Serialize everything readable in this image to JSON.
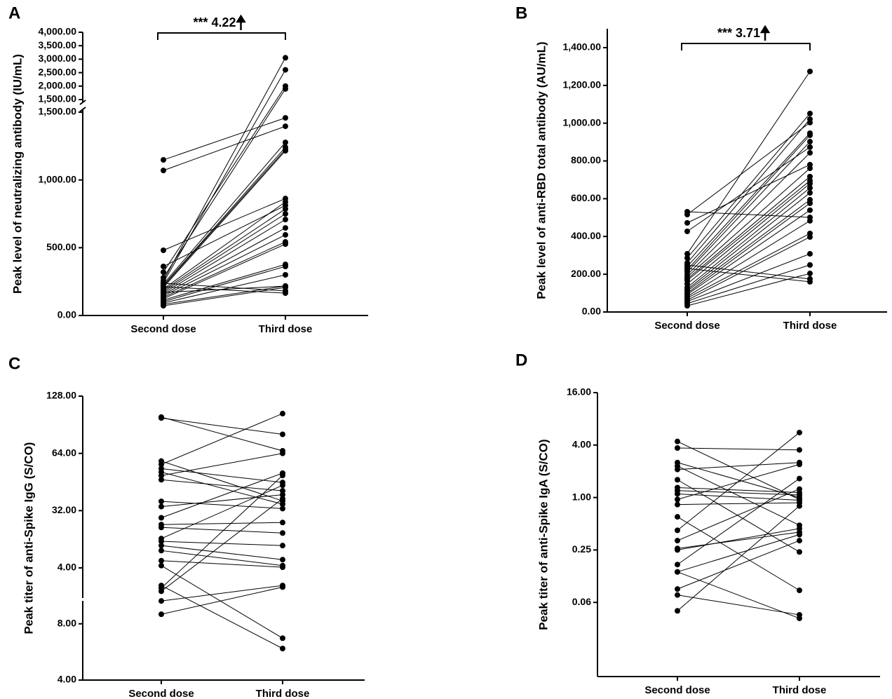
{
  "chart_data": [
    {
      "type": "paired",
      "panel": "A",
      "ylabel": "Peak level of neutralizing antibody (IU/mL)",
      "annotation": "*** 4.22",
      "categories": [
        "Second dose",
        "Third dose"
      ],
      "color": "#000000",
      "axis_break": true,
      "ylim": [
        0,
        1500
      ],
      "yticks": [
        {
          "value": 0,
          "label": "0.00"
        },
        {
          "value": 500,
          "label": "500.00"
        },
        {
          "value": 1000,
          "label": "1,000.00"
        },
        {
          "value": 1500,
          "label": "1,500.00"
        }
      ],
      "ylim_upper": [
        1500,
        4000
      ],
      "yticks_upper": [
        {
          "value": 1500,
          "label": "1,500.00"
        },
        {
          "value": 2000,
          "label": "2,000.00"
        },
        {
          "value": 2500,
          "label": "2,500.00"
        },
        {
          "value": 3000,
          "label": "3,000.00"
        },
        {
          "value": 3500,
          "label": "3,500.00"
        },
        {
          "value": 4000,
          "label": "4,000.00"
        }
      ],
      "series": [
        {
          "values": [
            1148,
            1458
          ]
        },
        {
          "values": [
            1070,
            1396
          ]
        },
        {
          "values": [
            481,
            863
          ]
        },
        {
          "values": [
            362,
            812
          ]
        },
        {
          "values": [
            320,
            2000
          ]
        },
        {
          "values": [
            279,
            1895
          ]
        },
        {
          "values": [
            258,
            3052
          ]
        },
        {
          "values": [
            243,
            2605
          ]
        },
        {
          "values": [
            233,
            1277
          ]
        },
        {
          "values": [
            222,
            1241
          ]
        },
        {
          "values": [
            217,
            1225
          ]
        },
        {
          "values": [
            207,
            1215
          ]
        },
        {
          "values": [
            196,
            838
          ]
        },
        {
          "values": [
            186,
            786
          ]
        },
        {
          "values": [
            176,
            750
          ]
        },
        {
          "values": [
            165,
            708
          ]
        },
        {
          "values": [
            155,
            646
          ]
        },
        {
          "values": [
            145,
            595
          ]
        },
        {
          "values": [
            134,
            543
          ]
        },
        {
          "values": [
            124,
            527
          ]
        },
        {
          "values": [
            114,
            377
          ]
        },
        {
          "values": [
            103,
            362
          ]
        },
        {
          "values": [
            93,
            300
          ]
        },
        {
          "values": [
            83,
            217
          ]
        },
        {
          "values": [
            72,
            207
          ]
        },
        {
          "values": [
            238,
            181
          ]
        },
        {
          "values": [
            212,
            165
          ]
        },
        {
          "values": [
            170,
            217
          ]
        }
      ]
    },
    {
      "type": "paired",
      "panel": "B",
      "ylabel": "Peak level of anti-RBD total antibody (AU/mL)",
      "annotation": "*** 3.71",
      "categories": [
        "Second dose",
        "Third dose"
      ],
      "color": "#000000",
      "ylim": [
        0,
        1500
      ],
      "yticks": [
        {
          "value": 0,
          "label": "0.00"
        },
        {
          "value": 200,
          "label": "200.00"
        },
        {
          "value": 400,
          "label": "400.00"
        },
        {
          "value": 600,
          "label": "600.00"
        },
        {
          "value": 800,
          "label": "800.00"
        },
        {
          "value": 1000,
          "label": "1,000.00"
        },
        {
          "value": 1200,
          "label": "1,200.00"
        },
        {
          "value": 1400,
          "label": "1,400.00"
        }
      ],
      "series": [
        {
          "values": [
            531,
            501
          ]
        },
        {
          "values": [
            516,
            1003
          ]
        },
        {
          "values": [
            472,
            780
          ]
        },
        {
          "values": [
            427,
            873
          ]
        },
        {
          "values": [
            308,
            1274
          ]
        },
        {
          "values": [
            286,
            1051
          ]
        },
        {
          "values": [
            260,
            1021
          ]
        },
        {
          "values": [
            241,
            947
          ]
        },
        {
          "values": [
            223,
            936
          ]
        },
        {
          "values": [
            212,
            902
          ]
        },
        {
          "values": [
            197,
            843
          ]
        },
        {
          "values": [
            186,
            761
          ]
        },
        {
          "values": [
            175,
            717
          ]
        },
        {
          "values": [
            167,
            695
          ]
        },
        {
          "values": [
            149,
            680
          ]
        },
        {
          "values": [
            130,
            657
          ]
        },
        {
          "values": [
            119,
            631
          ]
        },
        {
          "values": [
            111,
            594
          ]
        },
        {
          "values": [
            100,
            576
          ]
        },
        {
          "values": [
            93,
            539
          ]
        },
        {
          "values": [
            82,
            483
          ]
        },
        {
          "values": [
            74,
            416
          ]
        },
        {
          "values": [
            63,
            397
          ]
        },
        {
          "values": [
            56,
            308
          ]
        },
        {
          "values": [
            45,
            249
          ]
        },
        {
          "values": [
            33,
            204
          ]
        },
        {
          "values": [
            249,
            175
          ]
        },
        {
          "values": [
            230,
            160
          ]
        }
      ]
    },
    {
      "type": "paired",
      "panel": "C",
      "ylabel": "Peak titer of anti-Spike IgG (S/CO)",
      "categories": [
        "Second dose",
        "Third dose"
      ],
      "color": "#000000",
      "axis_break": true,
      "log_scale": true,
      "log_base": 2,
      "ylim": [
        4,
        10.8
      ],
      "yticks": [
        {
          "value": 4,
          "label": "4.00"
        },
        {
          "value": 8,
          "label": "8.00"
        }
      ],
      "ylim_upper": [
        1.28,
        128
      ],
      "yticks_upper": [
        {
          "value": 4,
          "label": "4.00"
        },
        {
          "value": 32,
          "label": "32.00"
        },
        {
          "value": 64,
          "label": "64.00"
        },
        {
          "value": 128,
          "label": "128.00"
        }
      ],
      "series": [
        {
          "values": [
            99.3,
            66
          ]
        },
        {
          "values": [
            98.2,
            80.6
          ]
        },
        {
          "values": [
            58.3,
            36
          ]
        },
        {
          "values": [
            56,
            103.6
          ]
        },
        {
          "values": [
            53.2,
            45
          ]
        },
        {
          "values": [
            51,
            34.6
          ]
        },
        {
          "values": [
            48.9,
            64
          ]
        },
        {
          "values": [
            46.5,
            40.7
          ]
        },
        {
          "values": [
            35.8,
            32.8
          ]
        },
        {
          "values": [
            33.6,
            38.8
          ]
        },
        {
          "values": [
            24.7,
            50.4
          ]
        },
        {
          "values": [
            19.3,
            20.8
          ]
        },
        {
          "values": [
            17.4,
            14.2
          ]
        },
        {
          "values": [
            11.6,
            43.5
          ]
        },
        {
          "values": [
            10.5,
            9
          ]
        },
        {
          "values": [
            9,
            5.4
          ]
        },
        {
          "values": [
            7.5,
            4.35
          ]
        },
        {
          "values": [
            5.2,
            4.1
          ]
        },
        {
          "values": [
            4.35,
            {
              "value": 6.7,
              "segment": "lower"
            }
          ]
        },
        {
          "values": [
            2.12,
            {
              "value": 5.9,
              "segment": "lower"
            }
          ]
        },
        {
          "values": [
            1.93,
            49
          ]
        },
        {
          "values": [
            1.72,
            37
          ]
        },
        {
          "values": [
            {
              "value": 10.6,
              "segment": "lower"
            },
            2.12
          ]
        },
        {
          "values": [
            {
              "value": 9,
              "segment": "lower"
            },
            2
          ]
        }
      ]
    },
    {
      "type": "paired",
      "panel": "D",
      "ylabel": "Peak titer of anti-Spike IgA (S/CO)",
      "categories": [
        "Second dose",
        "Third dose"
      ],
      "color": "#000000",
      "log_scale": true,
      "log_base": 4,
      "ylim": [
        0.0088,
        16
      ],
      "yticks": [
        {
          "value": 0.0625,
          "label": "0.06"
        },
        0.25,
        {
          "value": 1,
          "label": "1.00"
        },
        {
          "value": 4,
          "label": "4.00"
        },
        {
          "value": 16,
          "label": "16.00"
        }
      ],
      "series": [
        {
          "values": [
            4.4,
            0.95
          ]
        },
        {
          "values": [
            3.7,
            3.52
          ]
        },
        {
          "values": [
            2.52,
            1
          ]
        },
        {
          "values": [
            2.3,
            0.48
          ]
        },
        {
          "values": [
            2.1,
            2.52
          ]
        },
        {
          "values": [
            1.6,
            0.237
          ]
        },
        {
          "values": [
            1.3,
            1.14
          ]
        },
        {
          "values": [
            1.2,
            1.07
          ]
        },
        {
          "values": [
            1.1,
            0.93
          ]
        },
        {
          "values": [
            0.95,
            2.4
          ]
        },
        {
          "values": [
            0.83,
            0.87
          ]
        },
        {
          "values": [
            0.6,
            0.086
          ]
        },
        {
          "values": [
            0.42,
            5.57
          ]
        },
        {
          "values": [
            0.32,
            1.25
          ]
        },
        {
          "values": [
            0.26,
            0.4
          ]
        },
        {
          "values": [
            0.25,
            0.44
          ]
        },
        {
          "values": [
            0.17,
            1.65
          ]
        },
        {
          "values": [
            0.14,
            0.375
          ]
        },
        {
          "values": [
            0.089,
            0.32
          ]
        },
        {
          "values": [
            0.076,
            0.045
          ]
        },
        {
          "values": [
            0.05,
            0.8
          ]
        },
        {
          "values": [
            0.14,
            0.041
          ]
        }
      ]
    }
  ]
}
